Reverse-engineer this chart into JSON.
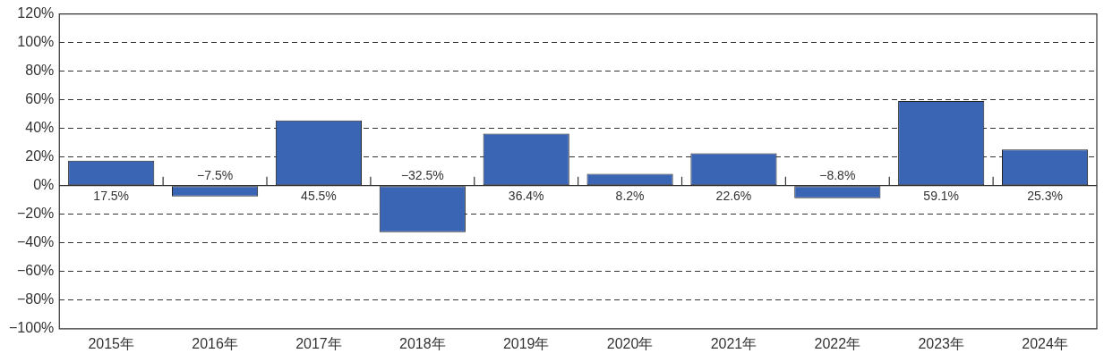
{
  "chart_data": {
    "type": "bar",
    "categories": [
      "2015年",
      "2016年",
      "2017年",
      "2018年",
      "2019年",
      "2020年",
      "2021年",
      "2022年",
      "2023年",
      "2024年"
    ],
    "values": [
      17.5,
      -7.5,
      45.5,
      -32.5,
      36.4,
      8.2,
      22.6,
      -8.8,
      59.1,
      25.3
    ],
    "value_labels": [
      "17.5%",
      "−7.5%",
      "45.5%",
      "−32.5%",
      "36.4%",
      "8.2%",
      "22.6%",
      "−8.8%",
      "59.1%",
      "25.3%"
    ],
    "color": "#3a64b4",
    "ylim": [
      -100,
      120
    ],
    "yticks": [
      {
        "value": -100,
        "label": "−100%"
      },
      {
        "value": -80,
        "label": "−80%"
      },
      {
        "value": -60,
        "label": "−60%"
      },
      {
        "value": -40,
        "label": "−40%"
      },
      {
        "value": -20,
        "label": "−20%"
      },
      {
        "value": 0,
        "label": "0%"
      },
      {
        "value": 20,
        "label": "20%"
      },
      {
        "value": 40,
        "label": "40%"
      },
      {
        "value": 60,
        "label": "60%"
      },
      {
        "value": 80,
        "label": "80%"
      },
      {
        "value": 100,
        "label": "100%"
      },
      {
        "value": 120,
        "label": "120%"
      }
    ],
    "grid": "y",
    "legend": false
  }
}
